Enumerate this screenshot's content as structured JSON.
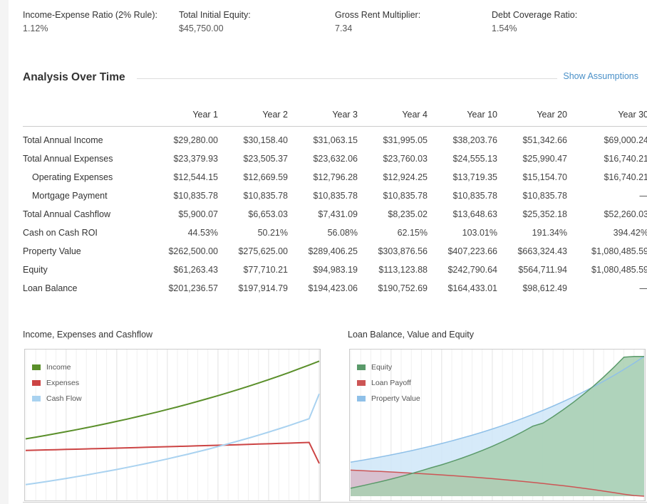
{
  "metrics": [
    {
      "label": "Income-Expense Ratio (2% Rule):",
      "value": "1.12%"
    },
    {
      "label": "Total Initial Equity:",
      "value": "$45,750.00"
    },
    {
      "label": "Gross Rent Multiplier:",
      "value": "7.34"
    },
    {
      "label": "Debt Coverage Ratio:",
      "value": "1.54%"
    }
  ],
  "analysis": {
    "title": "Analysis Over Time",
    "show_assumptions": "Show Assumptions",
    "columns": [
      "Year 1",
      "Year 2",
      "Year 3",
      "Year 4",
      "Year 10",
      "Year 20",
      "Year 30"
    ],
    "rows": [
      {
        "label": "Total Annual Income",
        "values": [
          "$29,280.00",
          "$30,158.40",
          "$31,063.15",
          "$31,995.05",
          "$38,203.76",
          "$51,342.66",
          "$69,000.24"
        ]
      },
      {
        "label": "Total Annual Expenses",
        "values": [
          "$23,379.93",
          "$23,505.37",
          "$23,632.06",
          "$23,760.03",
          "$24,555.13",
          "$25,990.47",
          "$16,740.21"
        ]
      },
      {
        "label": "Operating Expenses",
        "values": [
          "$12,544.15",
          "$12,669.59",
          "$12,796.28",
          "$12,924.25",
          "$13,719.35",
          "$15,154.70",
          "$16,740.21"
        ]
      },
      {
        "label": "Mortgage Payment",
        "values": [
          "$10,835.78",
          "$10,835.78",
          "$10,835.78",
          "$10,835.78",
          "$10,835.78",
          "$10,835.78",
          "—"
        ]
      },
      {
        "label": "Total Annual Cashflow",
        "values": [
          "$5,900.07",
          "$6,653.03",
          "$7,431.09",
          "$8,235.02",
          "$13,648.63",
          "$25,352.18",
          "$52,260.03"
        ]
      },
      {
        "label": "Cash on Cash ROI",
        "values": [
          "44.53%",
          "50.21%",
          "56.08%",
          "62.15%",
          "103.01%",
          "191.34%",
          "394.42%"
        ]
      },
      {
        "label": "Property Value",
        "values": [
          "$262,500.00",
          "$275,625.00",
          "$289,406.25",
          "$303,876.56",
          "$407,223.66",
          "$663,324.43",
          "$1,080,485.59"
        ]
      },
      {
        "label": "Equity",
        "values": [
          "$61,263.43",
          "$77,710.21",
          "$94,983.19",
          "$113,123.88",
          "$242,790.64",
          "$564,711.94",
          "$1,080,485.59"
        ]
      },
      {
        "label": "Loan Balance",
        "values": [
          "$201,236.57",
          "$197,914.79",
          "$194,423.06",
          "$190,752.69",
          "$164,433.01",
          "$98,612.49",
          "—"
        ]
      }
    ]
  },
  "chart_data": [
    {
      "type": "line",
      "title": "Income, Expenses and Cashflow",
      "x": [
        1,
        2,
        3,
        4,
        5,
        6,
        7,
        8,
        9,
        10,
        11,
        12,
        13,
        14,
        15,
        16,
        17,
        18,
        19,
        20,
        21,
        22,
        23,
        24,
        25,
        26,
        27,
        28,
        29,
        30
      ],
      "series": [
        {
          "name": "Income",
          "color": "#5a8f2a",
          "values": [
            29280,
            30158,
            31063,
            31995,
            32955,
            33944,
            34962,
            36011,
            37091,
            38204,
            39350,
            40530,
            41746,
            42999,
            44289,
            45617,
            46986,
            48395,
            49847,
            51343,
            52883,
            54469,
            56103,
            57787,
            59520,
            61306,
            63145,
            65040,
            66991,
            69000
          ]
        },
        {
          "name": "Expenses",
          "color": "#cc4444",
          "values": [
            23380,
            23505,
            23632,
            23760,
            23888,
            24018,
            24150,
            24282,
            24418,
            24555,
            24694,
            24834,
            24976,
            25120,
            25266,
            25414,
            25563,
            25715,
            25868,
            25990,
            26145,
            26300,
            26458,
            26617,
            26778,
            26941,
            27106,
            27273,
            27442,
            16740
          ]
        },
        {
          "name": "Cash Flow",
          "color": "#a9d2f0",
          "values": [
            5900,
            6653,
            7431,
            8235,
            9067,
            9926,
            10812,
            11729,
            12673,
            13649,
            14656,
            15696,
            16770,
            17879,
            19023,
            20203,
            21423,
            22680,
            23979,
            25352,
            26738,
            28169,
            29645,
            31170,
            32742,
            34365,
            36039,
            37767,
            39549,
            52260
          ]
        }
      ],
      "ylim": [
        0,
        72000
      ]
    },
    {
      "type": "area",
      "title": "Loan Balance, Value and Equity",
      "x": [
        1,
        2,
        3,
        4,
        5,
        6,
        7,
        8,
        9,
        10,
        11,
        12,
        13,
        14,
        15,
        16,
        17,
        18,
        19,
        20,
        21,
        22,
        23,
        24,
        25,
        26,
        27,
        28,
        29,
        30
      ],
      "series": [
        {
          "name": "Equity",
          "color": "#5a9a6a",
          "fill": "#a8cfb0",
          "values": [
            61263,
            77710,
            94983,
            113124,
            132300,
            152600,
            174100,
            196900,
            221000,
            242791,
            268000,
            294700,
            323200,
            353600,
            386100,
            420900,
            458200,
            498200,
            541200,
            564712,
            614600,
            668100,
            725300,
            786500,
            851900,
            921700,
            996000,
            1075000,
            1080000,
            1080486
          ]
        },
        {
          "name": "Loan Payoff",
          "color": "#cc5555",
          "fill": "#d8b8c8",
          "values": [
            201237,
            197915,
            194423,
            190753,
            186900,
            182850,
            178600,
            174100,
            169400,
            164433,
            159200,
            153800,
            148000,
            142000,
            135600,
            128900,
            121800,
            114400,
            106600,
            98612,
            90000,
            80900,
            71300,
            61200,
            50500,
            39300,
            27500,
            15000,
            5000,
            0
          ]
        },
        {
          "name": "Property Value",
          "color": "#8fc0e8",
          "fill": "#cfe6f8",
          "values": [
            262500,
            275625,
            289406,
            303877,
            319070,
            335024,
            351775,
            369364,
            387832,
            407224,
            427585,
            448964,
            471412,
            494983,
            519732,
            545719,
            573005,
            601655,
            631738,
            663324,
            696491,
            731315,
            767881,
            806275,
            846589,
            888918,
            933364,
            980032,
            1029034,
            1080486
          ]
        }
      ],
      "ylim": [
        0,
        1090000
      ]
    }
  ]
}
